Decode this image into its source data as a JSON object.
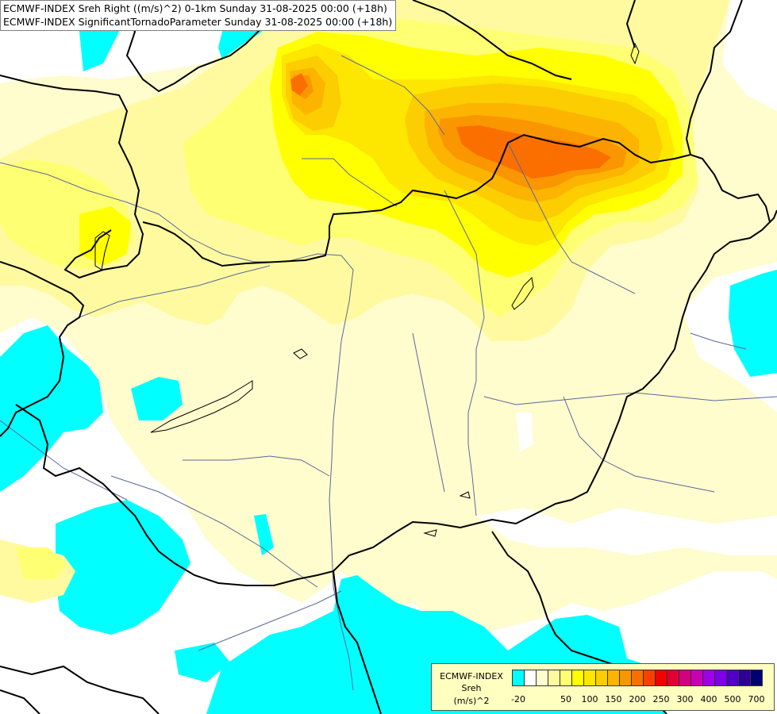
{
  "titles": {
    "line1": "ECMWF-INDEX Sreh Right ((m/s)^2) 0-1km Sunday 31-08-2025 00:00 (+18h)",
    "line2": "ECMWF-INDEX SignificantTornadoParameter Sunday 31-08-2025 00:00 (+18h)"
  },
  "legend": {
    "source": "ECMWF-INDEX",
    "variable": "Sreh",
    "unit": "(m/s)^2",
    "colors": [
      "#00ffff",
      "#ffffff",
      "#fffccd",
      "#fffaa0",
      "#ffff73",
      "#ffff00",
      "#fde600",
      "#fccd00",
      "#fcb400",
      "#fa9600",
      "#fa6f00",
      "#f64100",
      "#f50000",
      "#e10032",
      "#d2007d",
      "#c800b4",
      "#a000e6",
      "#7d00e6",
      "#5000c8",
      "#2d0096",
      "#000073"
    ],
    "tick_labels": [
      "-20",
      "50",
      "100",
      "150",
      "200",
      "250",
      "300",
      "400",
      "500",
      "700"
    ],
    "tick_positions": [
      0,
      4,
      6,
      8,
      10,
      12,
      14,
      16,
      18,
      20
    ]
  },
  "colors": {
    "background": "#fffccd",
    "cyan": "#00ffff",
    "white": "#ffffff",
    "pale_yellow": "#fffaa0",
    "yellow": "#ffff00",
    "gold": "#fde600",
    "light_orange": "#fccd00",
    "orange": "#fcb400",
    "dark_orange": "#fa9600",
    "red_orange": "#fa6f00",
    "border": "#000000",
    "river": "#5a6a9a"
  }
}
